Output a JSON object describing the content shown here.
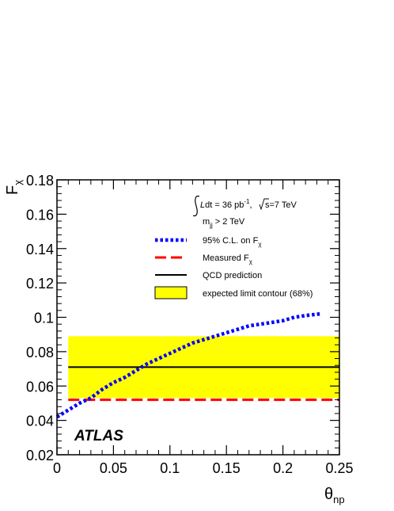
{
  "chart_data": {
    "type": "line",
    "xlabel_main": "θ",
    "xlabel_sub": "np",
    "ylabel_main": "F",
    "ylabel_sub": "χ",
    "xlim": [
      0,
      0.25
    ],
    "ylim": [
      0.02,
      0.18
    ],
    "xticks": [
      "0",
      "0.05",
      "0.1",
      "0.15",
      "0.2",
      "0.25"
    ],
    "yticks": [
      "0.02",
      "0.04",
      "0.06",
      "0.08",
      "0.1",
      "0.12",
      "0.14",
      "0.16",
      "0.18"
    ],
    "xtick_values": [
      0,
      0.05,
      0.1,
      0.15,
      0.2,
      0.25
    ],
    "ytick_values": [
      0.02,
      0.04,
      0.06,
      0.08,
      0.1,
      0.12,
      0.14,
      0.16,
      0.18
    ],
    "grid": false,
    "legend_position": "top-right",
    "annotations": {
      "lumi": "dt = 36 pb",
      "lumi_sup": "-1",
      "sqrt_s": "s=7 TeV",
      "mjj_cut": "m",
      "mjj_sub": "jj",
      "mjj_rest": " > 2 TeV",
      "experiment": "ATLAS"
    },
    "series": [
      {
        "name": "95% C.L. on F",
        "name_sub": "χ",
        "style": "dotted",
        "color": "#0000ff",
        "x": [
          0.0,
          0.01,
          0.02,
          0.03,
          0.04,
          0.05,
          0.06,
          0.07,
          0.08,
          0.09,
          0.1,
          0.11,
          0.12,
          0.13,
          0.14,
          0.15,
          0.16,
          0.17,
          0.18,
          0.19,
          0.2,
          0.21,
          0.22,
          0.233
        ],
        "y": [
          0.042,
          0.046,
          0.05,
          0.053,
          0.058,
          0.062,
          0.065,
          0.069,
          0.073,
          0.076,
          0.079,
          0.082,
          0.085,
          0.087,
          0.089,
          0.091,
          0.093,
          0.095,
          0.096,
          0.097,
          0.098,
          0.1,
          0.101,
          0.102
        ]
      },
      {
        "name": "Measured F",
        "name_sub": "χ",
        "style": "dashed",
        "color": "#ff0000",
        "x": [
          0.01,
          0.25
        ],
        "y": [
          0.052,
          0.052
        ]
      },
      {
        "name": "QCD prediction",
        "style": "solid",
        "color": "#000000",
        "x": [
          0.01,
          0.25
        ],
        "y": [
          0.071,
          0.071
        ]
      },
      {
        "name": "expected limit contour (68%)",
        "style": "band",
        "color": "#ffff00",
        "x": [
          0.01,
          0.25
        ],
        "y_low": 0.053,
        "y_high": 0.089
      }
    ]
  }
}
